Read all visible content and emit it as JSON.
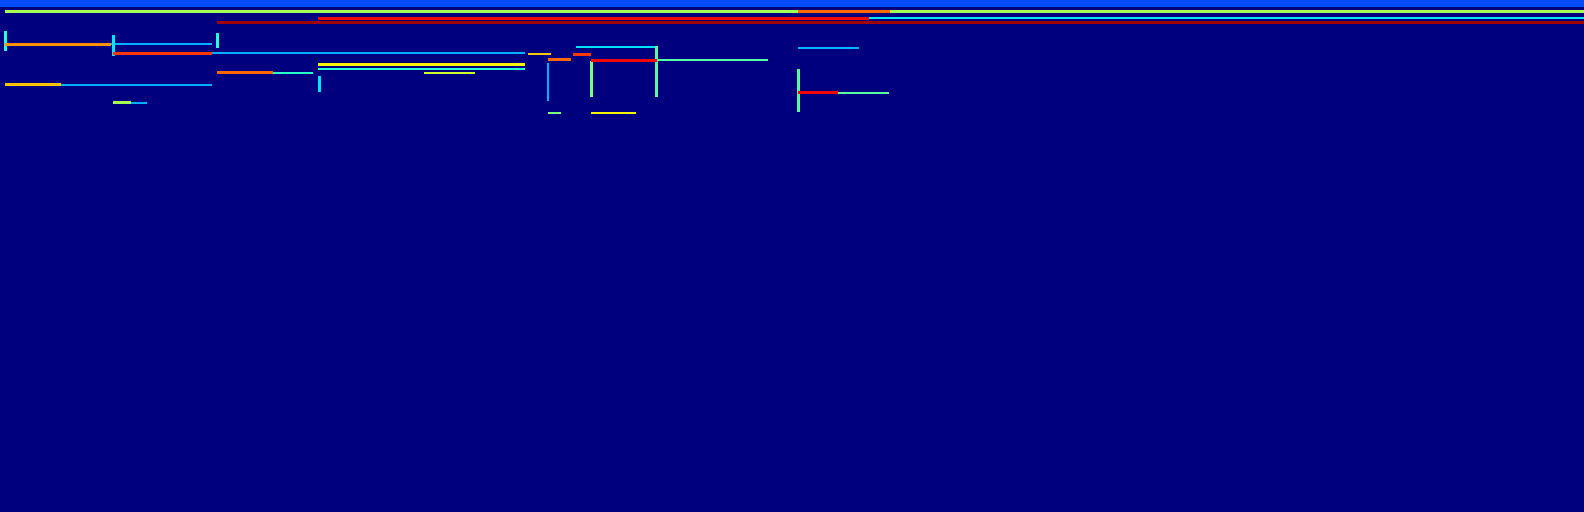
{
  "chart_data": {
    "type": "heatmap",
    "color": "jet",
    "tick_labels": false,
    "xlim": [
      0,
      1584
    ],
    "ylim": [
      512,
      0
    ],
    "color_range": [
      0,
      1
    ],
    "regions": [
      {
        "x": [
          0,
          1584
        ],
        "y": [
          0,
          7
        ],
        "value": 0.2
      },
      {
        "x": [
          5,
          1584
        ],
        "y": [
          10,
          13
        ],
        "value": 0.55
      },
      {
        "x": [
          798,
          890
        ],
        "y": [
          10,
          13
        ],
        "value": 0.8
      },
      {
        "x": [
          318,
          869
        ],
        "y": [
          17,
          20
        ],
        "value": 0.9
      },
      {
        "x": [
          869,
          1584
        ],
        "y": [
          17,
          19
        ],
        "value": 0.35
      },
      {
        "x": [
          217,
          1584
        ],
        "y": [
          21,
          24
        ],
        "value": 0.97
      },
      {
        "x": [
          5,
          111
        ],
        "y": [
          43,
          46
        ],
        "value": 0.75
      },
      {
        "x": [
          111,
          212
        ],
        "y": [
          43,
          45
        ],
        "value": 0.3
      },
      {
        "x": [
          113,
          212
        ],
        "y": [
          52,
          55
        ],
        "value": 0.85
      },
      {
        "x": [
          212,
          525
        ],
        "y": [
          52,
          54
        ],
        "value": 0.3
      },
      {
        "x": [
          217,
          273
        ],
        "y": [
          71,
          74
        ],
        "value": 0.8
      },
      {
        "x": [
          273,
          313
        ],
        "y": [
          72,
          74
        ],
        "value": 0.4
      },
      {
        "x": [
          318,
          525
        ],
        "y": [
          63,
          66
        ],
        "value": 0.65
      },
      {
        "x": [
          318,
          525
        ],
        "y": [
          68,
          70
        ],
        "value": 0.4
      },
      {
        "x": [
          424,
          475
        ],
        "y": [
          72,
          74
        ],
        "value": 0.6
      },
      {
        "x": [
          5,
          61
        ],
        "y": [
          83,
          86
        ],
        "value": 0.7
      },
      {
        "x": [
          61,
          212
        ],
        "y": [
          84,
          86
        ],
        "value": 0.3
      },
      {
        "x": [
          113,
          131
        ],
        "y": [
          101,
          104
        ],
        "value": 0.55
      },
      {
        "x": [
          131,
          147
        ],
        "y": [
          102,
          104
        ],
        "value": 0.3
      },
      {
        "x": [
          528,
          551
        ],
        "y": [
          53,
          55
        ],
        "value": 0.7
      },
      {
        "x": [
          548,
          571
        ],
        "y": [
          58,
          61
        ],
        "value": 0.8
      },
      {
        "x": [
          573,
          591
        ],
        "y": [
          53,
          56
        ],
        "value": 0.85
      },
      {
        "x": [
          591,
          657
        ],
        "y": [
          59,
          62
        ],
        "value": 0.9
      },
      {
        "x": [
          657,
          768
        ],
        "y": [
          59,
          61
        ],
        "value": 0.45
      },
      {
        "x": [
          576,
          657
        ],
        "y": [
          46,
          48
        ],
        "value": 0.35
      },
      {
        "x": [
          591,
          636
        ],
        "y": [
          112,
          114
        ],
        "value": 0.65
      },
      {
        "x": [
          548,
          561
        ],
        "y": [
          112,
          114
        ],
        "value": 0.5
      },
      {
        "x": [
          798,
          838
        ],
        "y": [
          91,
          94
        ],
        "value": 0.9
      },
      {
        "x": [
          838,
          889
        ],
        "y": [
          92,
          94
        ],
        "value": 0.45
      },
      {
        "x": [
          798,
          859
        ],
        "y": [
          47,
          49
        ],
        "value": 0.3
      },
      {
        "x": [
          4,
          7
        ],
        "y": [
          31,
          51
        ],
        "value": 0.4
      },
      {
        "x": [
          112,
          115
        ],
        "y": [
          35,
          56
        ],
        "value": 0.35
      },
      {
        "x": [
          216,
          219
        ],
        "y": [
          33,
          48
        ],
        "value": 0.4
      },
      {
        "x": [
          318,
          321
        ],
        "y": [
          76,
          92
        ],
        "value": 0.35
      },
      {
        "x": [
          590,
          593
        ],
        "y": [
          61,
          97
        ],
        "value": 0.5
      },
      {
        "x": [
          655,
          658
        ],
        "y": [
          46,
          97
        ],
        "value": 0.45
      },
      {
        "x": [
          797,
          800
        ],
        "y": [
          69,
          112
        ],
        "value": 0.45
      },
      {
        "x": [
          547,
          549
        ],
        "y": [
          63,
          101
        ],
        "value": 0.3
      }
    ]
  }
}
